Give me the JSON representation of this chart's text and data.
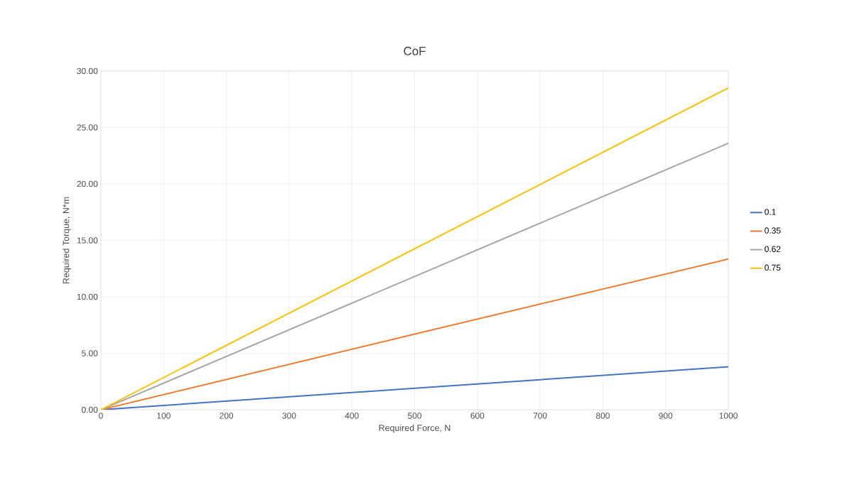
{
  "chart_data": {
    "type": "line",
    "title": "CoF",
    "xlabel": "Required Force, N",
    "ylabel": "Required Torque, N*m",
    "x": [
      0,
      500,
      1000
    ],
    "series": [
      {
        "name": "0.1",
        "color": "#4472c4",
        "values": [
          0,
          1.9,
          3.8
        ]
      },
      {
        "name": "0.35",
        "color": "#ed7d31",
        "values": [
          0,
          6.7,
          13.35
        ]
      },
      {
        "name": "0.62",
        "color": "#a5a5a5",
        "values": [
          0,
          11.8,
          23.6
        ]
      },
      {
        "name": "0.75",
        "color": "#ffc000",
        "values": [
          0,
          14.25,
          28.5
        ]
      }
    ],
    "xlim": [
      0,
      1000
    ],
    "ylim": [
      0,
      30
    ],
    "xticks": [
      0,
      100,
      200,
      300,
      400,
      500,
      600,
      700,
      800,
      900,
      1000
    ],
    "yticks": [
      {
        "value": 0,
        "label": "0.00"
      },
      {
        "value": 5,
        "label": "5.00"
      },
      {
        "value": 10,
        "label": "10.00"
      },
      {
        "value": 15,
        "label": "15.00"
      },
      {
        "value": 20,
        "label": "20.00"
      },
      {
        "value": 25,
        "label": "25.00"
      },
      {
        "value": 30,
        "label": "30.00"
      }
    ],
    "grid": true,
    "legend": "right",
    "line_style": "solid"
  }
}
